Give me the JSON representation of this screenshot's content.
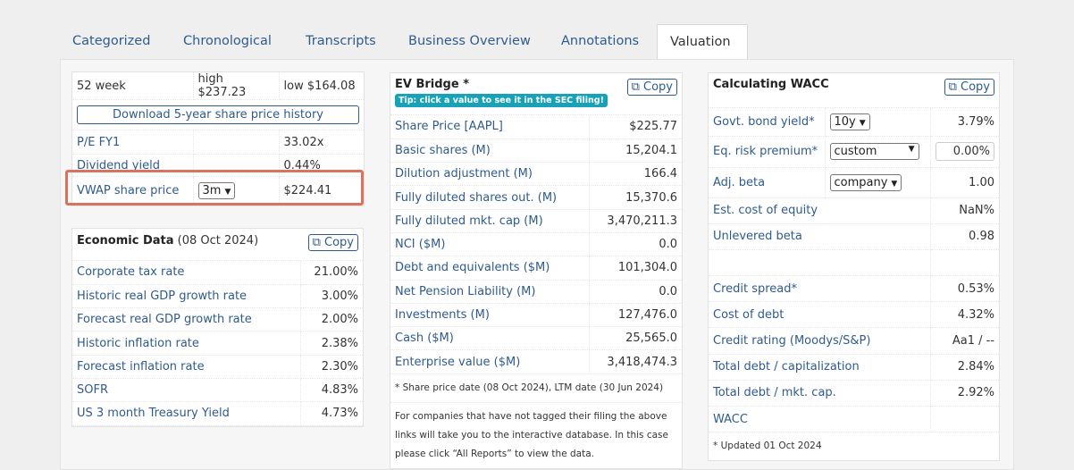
{
  "tabs": [
    "Categorized",
    "Chronological",
    "Transcripts",
    "Business Overview",
    "Annotations",
    "Valuation"
  ],
  "active_tab": "Valuation",
  "share_card": {
    "week52_label": "52 week",
    "high": "high $237.23",
    "low": "low $164.08",
    "download_label": "Download 5-year share price history",
    "pe_label": "P/E FY1",
    "pe_value": "33.02x",
    "div_label": "Dividend yield",
    "div_value": "0.44%",
    "vwap_label": "VWAP share price",
    "vwap_period": "3m",
    "vwap_value": "$224.41"
  },
  "econ": {
    "title": "Economic Data",
    "date": "(08 Oct 2024)",
    "copy": "Copy",
    "rows": [
      {
        "label": "Corporate tax rate",
        "value": "21.00%"
      },
      {
        "label": "Historic real GDP growth rate",
        "value": "3.00%"
      },
      {
        "label": "Forecast real GDP growth rate",
        "value": "2.00%"
      },
      {
        "label": "Historic inflation rate",
        "value": "2.38%"
      },
      {
        "label": "Forecast inflation rate",
        "value": "2.30%"
      },
      {
        "label": "SOFR",
        "value": "4.83%"
      },
      {
        "label": "US 3 month Treasury Yield",
        "value": "4.73%"
      }
    ]
  },
  "ev": {
    "title": "EV Bridge *",
    "tip": "Tip: click a value to see it in the SEC filing!",
    "copy": "Copy",
    "rows": [
      {
        "label": "Share Price [AAPL]",
        "value": "$225.77"
      },
      {
        "label": "Basic shares (M)",
        "value": "15,204.1"
      },
      {
        "label": "Dilution adjustment (M)",
        "value": "166.4"
      },
      {
        "label": "Fully diluted shares out. (M)",
        "value": "15,370.6"
      },
      {
        "label": "Fully diluted mkt. cap (M)",
        "value": "3,470,211.3"
      },
      {
        "label": "NCI ($M)",
        "value": "0.0"
      },
      {
        "label": "Debt and equivalents ($M)",
        "value": "101,304.0"
      },
      {
        "label": "Net Pension Liability (M)",
        "value": "0.0"
      },
      {
        "label": "Investments (M)",
        "value": "127,476.0"
      },
      {
        "label": "Cash ($M)",
        "value": "25,565.0"
      },
      {
        "label": "Enterprise value ($M)",
        "value": "3,418,474.3"
      }
    ],
    "note1": "* Share price date (08 Oct 2024), LTM date (30 Jun 2024)",
    "note2": "For companies that have not tagged their filing the above links will take you to the interactive database. In this case please click “All Reports” to view the data."
  },
  "wacc": {
    "title": "Calculating WACC",
    "copy": "Copy",
    "govt_label": "Govt. bond yield*",
    "govt_select": "10y",
    "govt_value": "3.79%",
    "erp_label": "Eq. risk premium*",
    "erp_select": "custom",
    "erp_input": "0.00%",
    "beta_label": "Adj. beta",
    "beta_select": "company",
    "beta_value": "1.00",
    "rows": [
      {
        "label": "Est. cost of equity",
        "value": "NaN%"
      },
      {
        "label": "Unlevered beta",
        "value": "0.98"
      },
      {
        "label": "",
        "value": ""
      },
      {
        "label": "Credit spread*",
        "value": "0.53%"
      },
      {
        "label": "Cost of debt",
        "value": "4.32%"
      },
      {
        "label": "Credit rating (Moodys/S&P)",
        "value": "Aa1 / --"
      },
      {
        "label": "Total debt / capitalization",
        "value": "2.84%"
      },
      {
        "label": "Total debt / mkt. cap.",
        "value": "2.92%"
      },
      {
        "label": "WACC",
        "value": ""
      }
    ],
    "note": "* Updated 01 Oct 2024"
  }
}
